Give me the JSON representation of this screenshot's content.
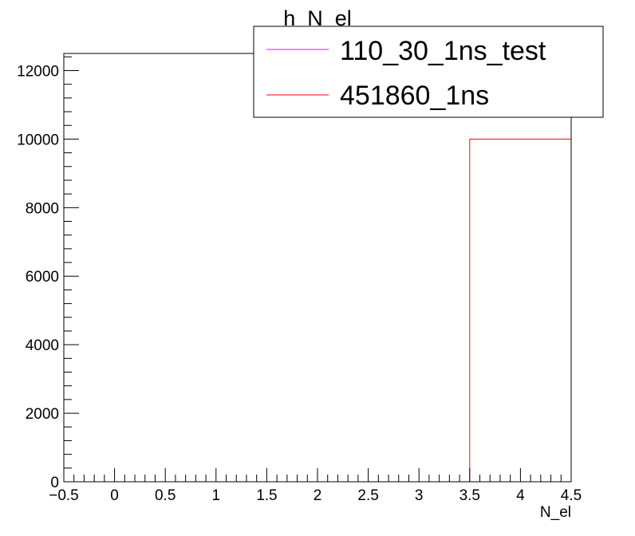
{
  "chart_data": {
    "type": "histogram",
    "title": "h_N_el",
    "xlabel": "N_el",
    "ylabel": "",
    "xlim": [
      -0.5,
      4.5
    ],
    "ylim": [
      0,
      12500
    ],
    "xticks": [
      "−0.5",
      "0",
      "0.5",
      "1",
      "1.5",
      "2",
      "2.5",
      "3",
      "3.5",
      "4",
      "4.5"
    ],
    "yticks": [
      "0",
      "2000",
      "4000",
      "6000",
      "8000",
      "10000",
      "12000"
    ],
    "bin_edges": [
      -0.5,
      0.5,
      1.5,
      2.5,
      3.5,
      4.5
    ],
    "series": [
      {
        "name": "110_30_1ns_test",
        "color": "#ff00ff",
        "values": [
          0,
          0,
          0,
          0,
          0
        ]
      },
      {
        "name": "451860_1ns",
        "color": "#ff0000",
        "values": [
          0,
          0,
          0,
          0,
          10000
        ]
      }
    ],
    "legend_position": "top-right"
  }
}
